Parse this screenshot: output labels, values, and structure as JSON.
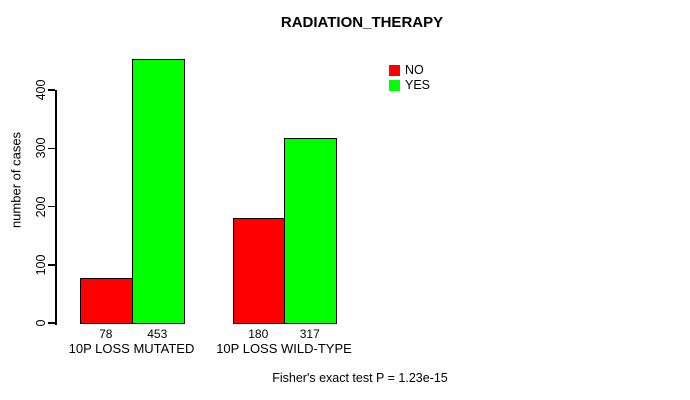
{
  "chart_data": {
    "type": "bar",
    "title": "RADIATION_THERAPY",
    "ylabel": "number of cases",
    "xlabel": "",
    "categories": [
      "10P LOSS MUTATED",
      "10P LOSS WILD-TYPE"
    ],
    "series": [
      {
        "name": "NO",
        "color": "#ff0000",
        "values": [
          78,
          180
        ]
      },
      {
        "name": "YES",
        "color": "#00ff00",
        "values": [
          453,
          317
        ]
      }
    ],
    "bar_value_labels": [
      [
        "78",
        "453"
      ],
      [
        "180",
        "317"
      ]
    ],
    "yticks": [
      "0",
      "100",
      "200",
      "300",
      "400"
    ],
    "ylim": [
      0,
      465
    ],
    "grid": false,
    "legend_position": "top-right",
    "annotation": "Fisher's exact test P = 1.23e-15",
    "colors": {
      "background": "#ffffff",
      "axis": "#000000",
      "text": "#000000",
      "bar_border": "#000000"
    }
  }
}
